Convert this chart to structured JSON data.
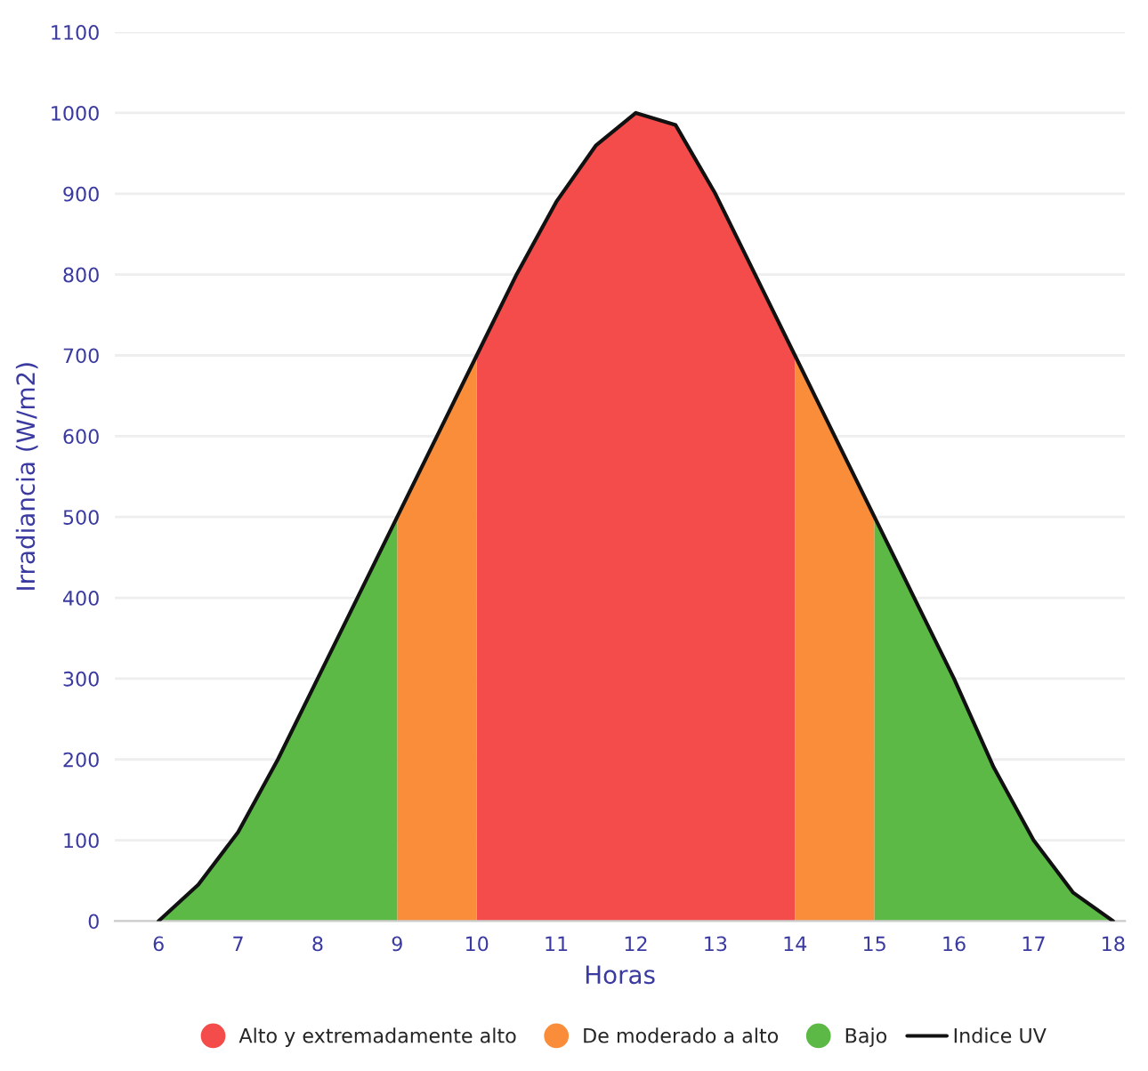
{
  "chart_data": {
    "type": "area",
    "xlabel": "Horas",
    "ylabel": "Irradiancia (W/m2)",
    "xlim": [
      5.45,
      18.15
    ],
    "ylim": [
      0,
      1100
    ],
    "xticks": [
      6,
      7,
      8,
      9,
      10,
      11,
      12,
      13,
      14,
      15,
      16,
      17,
      18
    ],
    "yticks": [
      0,
      100,
      200,
      300,
      400,
      500,
      600,
      700,
      800,
      900,
      1000,
      1100
    ],
    "grid": "y",
    "legend": "bottom",
    "series": [
      {
        "name": "Alto y extremadamente alto",
        "color": "#f44b4b",
        "x": [
          10,
          10.5,
          11,
          11.5,
          12,
          12.5,
          13,
          13.5,
          14
        ],
        "values": [
          700,
          800,
          890,
          960,
          1000,
          985,
          900,
          800,
          700
        ]
      },
      {
        "name": "De moderado a alto",
        "color": "#f98d3a",
        "x": [
          9,
          9.5,
          10,
          12,
          14,
          14.5,
          15
        ],
        "values": [
          500,
          600,
          700,
          null,
          700,
          600,
          500
        ]
      },
      {
        "name": "Bajo",
        "color": "#5cb946",
        "x": [
          6,
          6.5,
          7,
          7.5,
          8,
          8.5,
          9,
          12,
          15,
          15.5,
          16,
          16.5,
          17,
          17.5,
          18
        ],
        "values": [
          0,
          45,
          110,
          200,
          300,
          400,
          500,
          null,
          500,
          400,
          300,
          190,
          100,
          35,
          0
        ]
      },
      {
        "name": "Indice UV",
        "type": "line",
        "color": "#111111",
        "x": [
          6,
          6.5,
          7,
          7.5,
          8,
          8.5,
          9,
          9.5,
          10,
          10.5,
          11,
          11.5,
          12,
          12.5,
          13,
          13.5,
          14,
          14.5,
          15,
          15.5,
          16,
          16.5,
          17,
          17.5,
          18
        ],
        "values": [
          0,
          45,
          110,
          200,
          300,
          400,
          500,
          600,
          700,
          800,
          890,
          960,
          1000,
          985,
          900,
          800,
          700,
          600,
          500,
          400,
          300,
          190,
          100,
          35,
          0
        ]
      }
    ]
  }
}
